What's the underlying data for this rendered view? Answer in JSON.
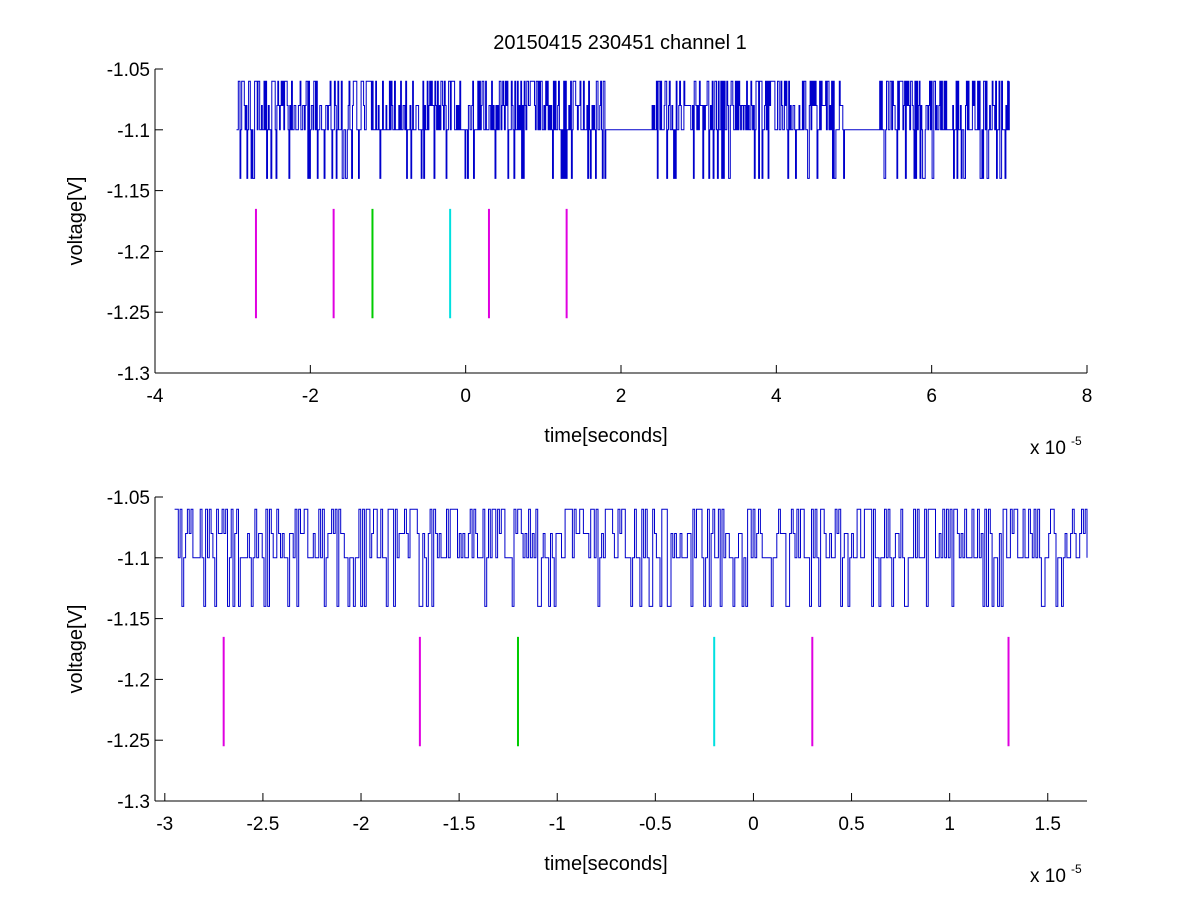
{
  "figure": {
    "title": "20150415 230451 channel 1"
  },
  "chart_data": [
    {
      "type": "line",
      "title": "20150415 230451 channel 1",
      "xlabel": "time[seconds]",
      "ylabel": "voltage[V]",
      "x_exponent_label": "x 10",
      "x_exponent_power": "-5",
      "xlim": [
        -4,
        8
      ],
      "ylim": [
        -1.3,
        -1.05
      ],
      "xticks": [
        -4,
        -2,
        0,
        2,
        4,
        6,
        8
      ],
      "xtick_labels": [
        "-4",
        "-2",
        "0",
        "2",
        "4",
        "6",
        "8"
      ],
      "yticks": [
        -1.05,
        -1.1,
        -1.15,
        -1.2,
        -1.25,
        -1.3
      ],
      "ytick_labels": [
        "-1.05",
        "-1.1",
        "-1.15",
        "-1.2",
        "-1.25",
        "-1.3"
      ],
      "grid": false,
      "signal": {
        "color": "#0000cc",
        "x_range": [
          -2.95,
          7.0
        ],
        "levels": [
          -1.06,
          -1.08,
          -1.1,
          -1.14
        ],
        "baseline": -1.1
      },
      "markers": {
        "y_range": [
          -1.255,
          -1.165
        ],
        "lines": [
          {
            "x": -2.7,
            "color": "#e000e0"
          },
          {
            "x": -1.7,
            "color": "#e000e0"
          },
          {
            "x": -1.2,
            "color": "#00cc00"
          },
          {
            "x": -0.2,
            "color": "#00e0e0"
          },
          {
            "x": 0.3,
            "color": "#e000e0"
          },
          {
            "x": 1.3,
            "color": "#e000e0"
          }
        ]
      }
    },
    {
      "type": "line",
      "title": "",
      "xlabel": "time[seconds]",
      "ylabel": "voltage[V]",
      "x_exponent_label": "x 10",
      "x_exponent_power": "-5",
      "xlim": [
        -3.05,
        1.7
      ],
      "ylim": [
        -1.3,
        -1.05
      ],
      "xticks": [
        -3,
        -2.5,
        -2,
        -1.5,
        -1,
        -0.5,
        0,
        0.5,
        1,
        1.5
      ],
      "xtick_labels": [
        "-3",
        "-2.5",
        "-2",
        "-1.5",
        "-1",
        "-0.5",
        "0",
        "0.5",
        "1",
        "1.5"
      ],
      "yticks": [
        -1.05,
        -1.1,
        -1.15,
        -1.2,
        -1.25,
        -1.3
      ],
      "ytick_labels": [
        "-1.05",
        "-1.1",
        "-1.15",
        "-1.2",
        "-1.25",
        "-1.3"
      ],
      "grid": false,
      "signal": {
        "color": "#0000cc",
        "x_range": [
          -2.95,
          1.7
        ],
        "levels": [
          -1.06,
          -1.08,
          -1.1,
          -1.12,
          -1.14
        ],
        "baseline": -1.1
      },
      "markers": {
        "y_range": [
          -1.255,
          -1.165
        ],
        "lines": [
          {
            "x": -2.7,
            "color": "#e000e0"
          },
          {
            "x": -1.7,
            "color": "#e000e0"
          },
          {
            "x": -1.2,
            "color": "#00cc00"
          },
          {
            "x": -0.2,
            "color": "#00e0e0"
          },
          {
            "x": 0.3,
            "color": "#e000e0"
          },
          {
            "x": 1.3,
            "color": "#e000e0"
          }
        ]
      }
    }
  ]
}
